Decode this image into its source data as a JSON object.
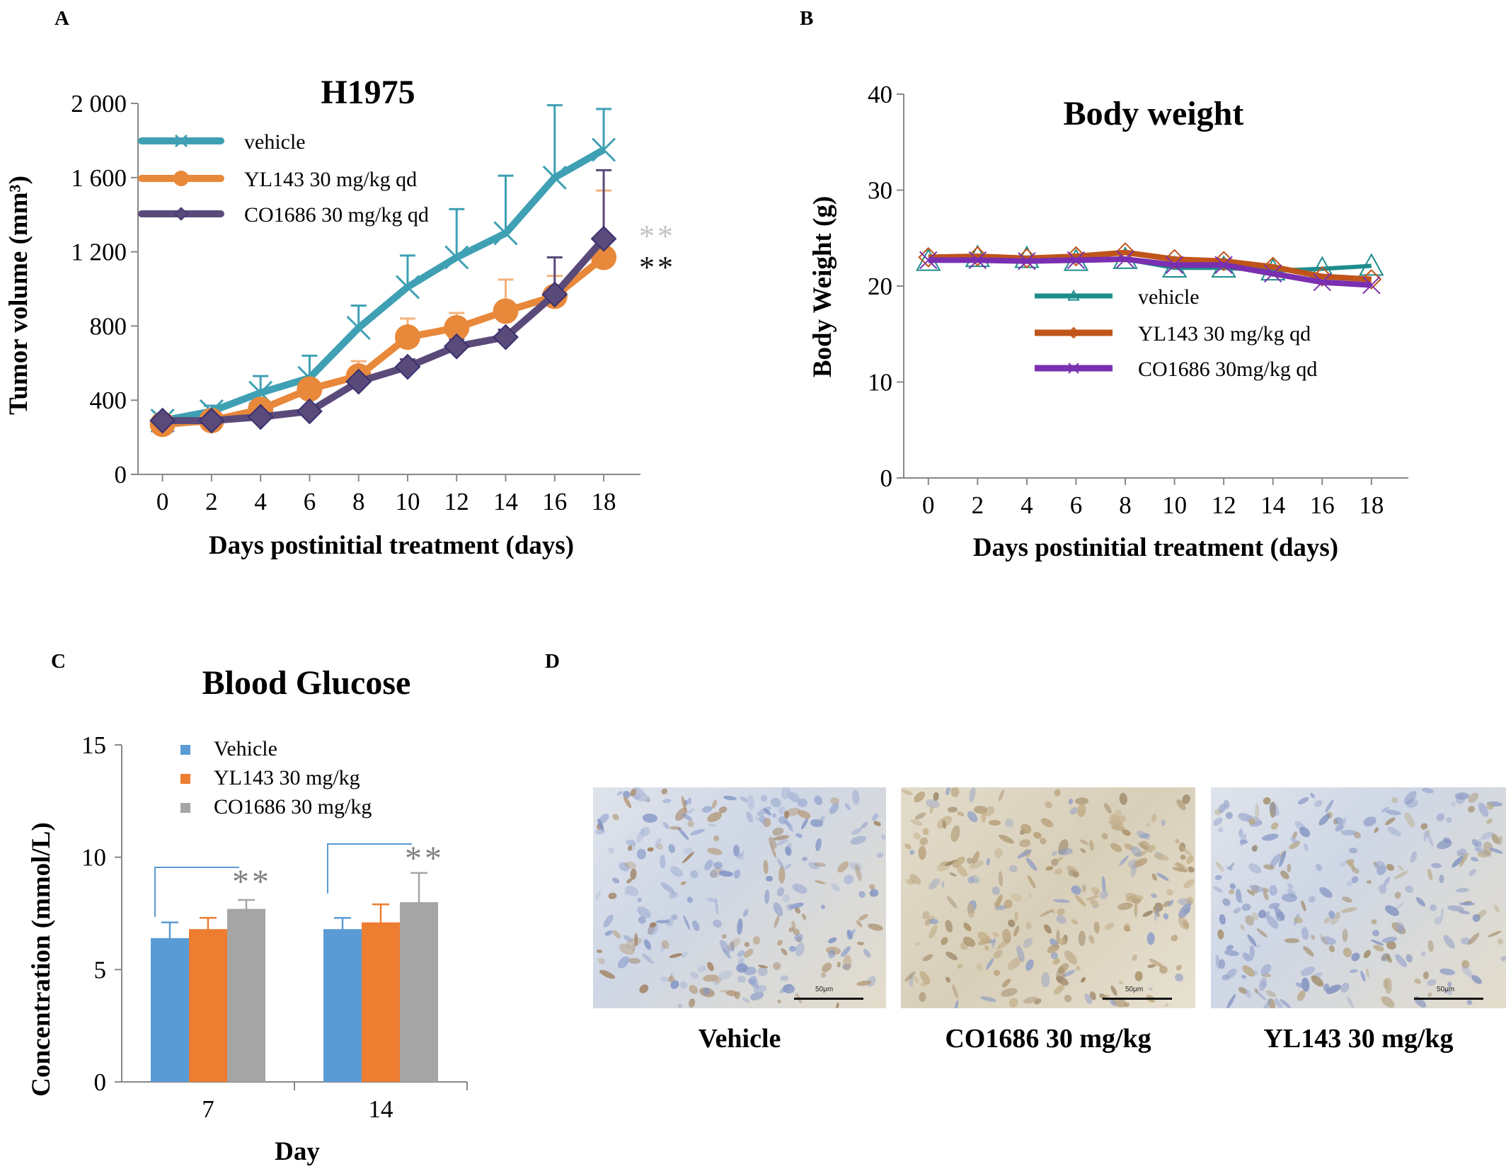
{
  "panels": {
    "a": "A",
    "b": "B",
    "c": "C",
    "d": "D"
  },
  "colors": {
    "vehicle_a": "#3fa0b4",
    "yl143_a": "#e8883a",
    "co1686_a": "#5a4a7a",
    "vehicle_b": "#1f8c8c",
    "yl143_b": "#c0541a",
    "co1686_b": "#7a2fb0",
    "bar_vehicle": "#5b9bd5",
    "bar_yl143": "#ed7d31",
    "bar_co1686": "#a5a5a5",
    "bracket": "#5b9bd5"
  },
  "chart_data": [
    {
      "id": "tumor",
      "type": "line",
      "title": "H1975",
      "xlabel": "Days postinitial treatment (days)",
      "ylabel": "Tumor volume (mm³)",
      "x": [
        0,
        2,
        4,
        6,
        8,
        10,
        12,
        14,
        16,
        18
      ],
      "xlim": [
        -1,
        19.5
      ],
      "ylim": [
        0,
        2000
      ],
      "yticks": [
        0,
        400,
        800,
        1200,
        1600,
        2000
      ],
      "ytick_labels": [
        "0",
        "400",
        "800",
        "1 200",
        "1 600",
        "2 000"
      ],
      "series": [
        {
          "name": "vehicle",
          "marker": "x",
          "values": [
            290,
            340,
            440,
            520,
            790,
            1010,
            1170,
            1300,
            1600,
            1750
          ],
          "errors": [
            0,
            30,
            90,
            120,
            120,
            170,
            260,
            310,
            390,
            220
          ]
        },
        {
          "name": "YL143 30 mg/kg qd",
          "marker": "circle",
          "values": [
            270,
            290,
            350,
            460,
            530,
            740,
            790,
            880,
            960,
            1170
          ],
          "errors": [
            0,
            15,
            30,
            40,
            80,
            100,
            80,
            170,
            110,
            360
          ]
        },
        {
          "name": "CO1686 30 mg/kg qd",
          "marker": "diamond",
          "values": [
            290,
            290,
            310,
            340,
            500,
            580,
            690,
            740,
            970,
            1270
          ],
          "errors": [
            0,
            15,
            20,
            20,
            30,
            40,
            40,
            40,
            200,
            370
          ]
        }
      ],
      "annotations": [
        "**",
        "**"
      ],
      "legend": "top-left"
    },
    {
      "id": "weight",
      "type": "line",
      "title": "Body weight",
      "xlabel": "Days postinitial treatment (days)",
      "ylabel": "Body Weight (g)",
      "x": [
        0,
        2,
        4,
        6,
        8,
        10,
        12,
        14,
        16,
        18
      ],
      "xlim": [
        -1,
        19.5
      ],
      "ylim": [
        0,
        40
      ],
      "yticks": [
        0,
        10,
        20,
        30,
        40
      ],
      "series": [
        {
          "name": "vehicle",
          "marker": "triangle",
          "values": [
            22.6,
            23.0,
            22.9,
            22.6,
            22.8,
            21.9,
            21.9,
            21.6,
            21.8,
            22.1
          ]
        },
        {
          "name": "YL143 30 mg/kg qd",
          "marker": "diamond",
          "values": [
            23.0,
            23.1,
            22.9,
            23.1,
            23.5,
            22.8,
            22.6,
            22.0,
            21.0,
            20.7
          ]
        },
        {
          "name": "CO1686 30mg/kg qd",
          "marker": "x",
          "values": [
            22.7,
            22.7,
            22.6,
            22.7,
            22.8,
            22.2,
            22.2,
            21.3,
            20.4,
            20.1
          ]
        }
      ],
      "legend": "center"
    },
    {
      "id": "glucose",
      "type": "bar",
      "title": "Blood Glucose",
      "xlabel": "Day",
      "ylabel": "Concentration (mmol/L)",
      "categories": [
        "7",
        "14"
      ],
      "ylim": [
        0,
        15
      ],
      "yticks": [
        0,
        5,
        10,
        15
      ],
      "series": [
        {
          "name": "Vehicle",
          "values": [
            6.4,
            6.8
          ],
          "errors": [
            0.7,
            0.5
          ]
        },
        {
          "name": "YL143 30 mg/kg",
          "values": [
            6.8,
            7.1
          ],
          "errors": [
            0.5,
            0.8
          ]
        },
        {
          "name": "CO1686 30 mg/kg",
          "values": [
            7.7,
            8.0
          ],
          "errors": [
            0.4,
            1.3
          ]
        }
      ],
      "annotations": [
        "**",
        "**"
      ],
      "legend": "top-left"
    }
  ],
  "histology": {
    "captions": [
      "Vehicle",
      "CO1686 30 mg/kg",
      "YL143 30 mg/kg"
    ],
    "scale_label": "50μm"
  }
}
